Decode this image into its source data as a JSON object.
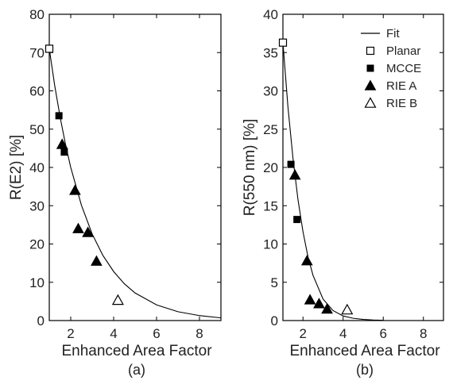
{
  "figure": {
    "legend": {
      "entries": [
        "Fit",
        "Planar",
        "MCCE",
        "RIE A",
        "RIE B"
      ]
    }
  },
  "chart_data": [
    {
      "type": "scatter",
      "panel_label": "(a)",
      "xlabel": "Enhanced Area Factor",
      "ylabel": "R(E2) [%]",
      "xlim": [
        1,
        9
      ],
      "ylim": [
        0,
        80
      ],
      "xticks": [
        "2",
        "4",
        "6",
        "8"
      ],
      "yticks": [
        "0",
        "10",
        "20",
        "30",
        "40",
        "50",
        "60",
        "70",
        "80"
      ],
      "grid": false,
      "series": [
        {
          "name": "Planar",
          "marker": "open-square",
          "points": [
            [
              1.0,
              71
            ]
          ]
        },
        {
          "name": "MCCE",
          "marker": "filled-square",
          "points": [
            [
              1.45,
              53.5
            ],
            [
              1.7,
              44
            ]
          ]
        },
        {
          "name": "RIE A",
          "marker": "filled-triangle",
          "points": [
            [
              1.6,
              46
            ],
            [
              2.2,
              34
            ],
            [
              2.35,
              24
            ],
            [
              2.8,
              23
            ],
            [
              3.2,
              15.5
            ]
          ]
        },
        {
          "name": "RIE B",
          "marker": "open-triangle",
          "points": [
            [
              4.2,
              5.3
            ]
          ]
        }
      ],
      "fit": {
        "name": "Fit",
        "x": [
          1.0,
          1.25,
          1.5,
          1.75,
          2.0,
          2.5,
          3.0,
          3.5,
          4.0,
          4.5,
          5.0,
          6.0,
          7.0,
          8.0,
          9.0
        ],
        "y": [
          71,
          61.5,
          53.3,
          46.2,
          40.0,
          30.1,
          22.6,
          17.0,
          12.8,
          9.6,
          7.2,
          4.1,
          2.3,
          1.3,
          0.7
        ]
      }
    },
    {
      "type": "scatter",
      "panel_label": "(b)",
      "xlabel": "Enhanced Area Factor",
      "ylabel": "R(550 nm) [%]",
      "xlim": [
        1,
        9
      ],
      "ylim": [
        0,
        40
      ],
      "xticks": [
        "2",
        "4",
        "6",
        "8"
      ],
      "yticks": [
        "0",
        "5",
        "10",
        "15",
        "20",
        "25",
        "30",
        "35",
        "40"
      ],
      "grid": false,
      "legend_position": "top-right",
      "series": [
        {
          "name": "Planar",
          "marker": "open-square",
          "points": [
            [
              1.0,
              36.3
            ]
          ]
        },
        {
          "name": "MCCE",
          "marker": "filled-square",
          "points": [
            [
              1.4,
              20.4
            ],
            [
              1.7,
              13.2
            ]
          ]
        },
        {
          "name": "RIE A",
          "marker": "filled-triangle",
          "points": [
            [
              1.6,
              19
            ],
            [
              2.2,
              7.8
            ],
            [
              2.35,
              2.7
            ],
            [
              2.8,
              2.2
            ],
            [
              3.2,
              1.5
            ]
          ]
        },
        {
          "name": "RIE B",
          "marker": "open-triangle",
          "points": [
            [
              4.2,
              1.4
            ]
          ]
        }
      ],
      "fit": {
        "name": "Fit",
        "x": [
          1.0,
          1.25,
          1.5,
          1.75,
          2.0,
          2.25,
          2.5,
          3.0,
          3.5,
          4.0,
          4.5,
          5.0,
          5.5,
          6.0
        ],
        "y": [
          36.3,
          27.9,
          21.2,
          15.8,
          11.6,
          8.3,
          5.9,
          2.8,
          1.3,
          0.6,
          0.3,
          0.15,
          0.07,
          0.03
        ]
      }
    }
  ]
}
